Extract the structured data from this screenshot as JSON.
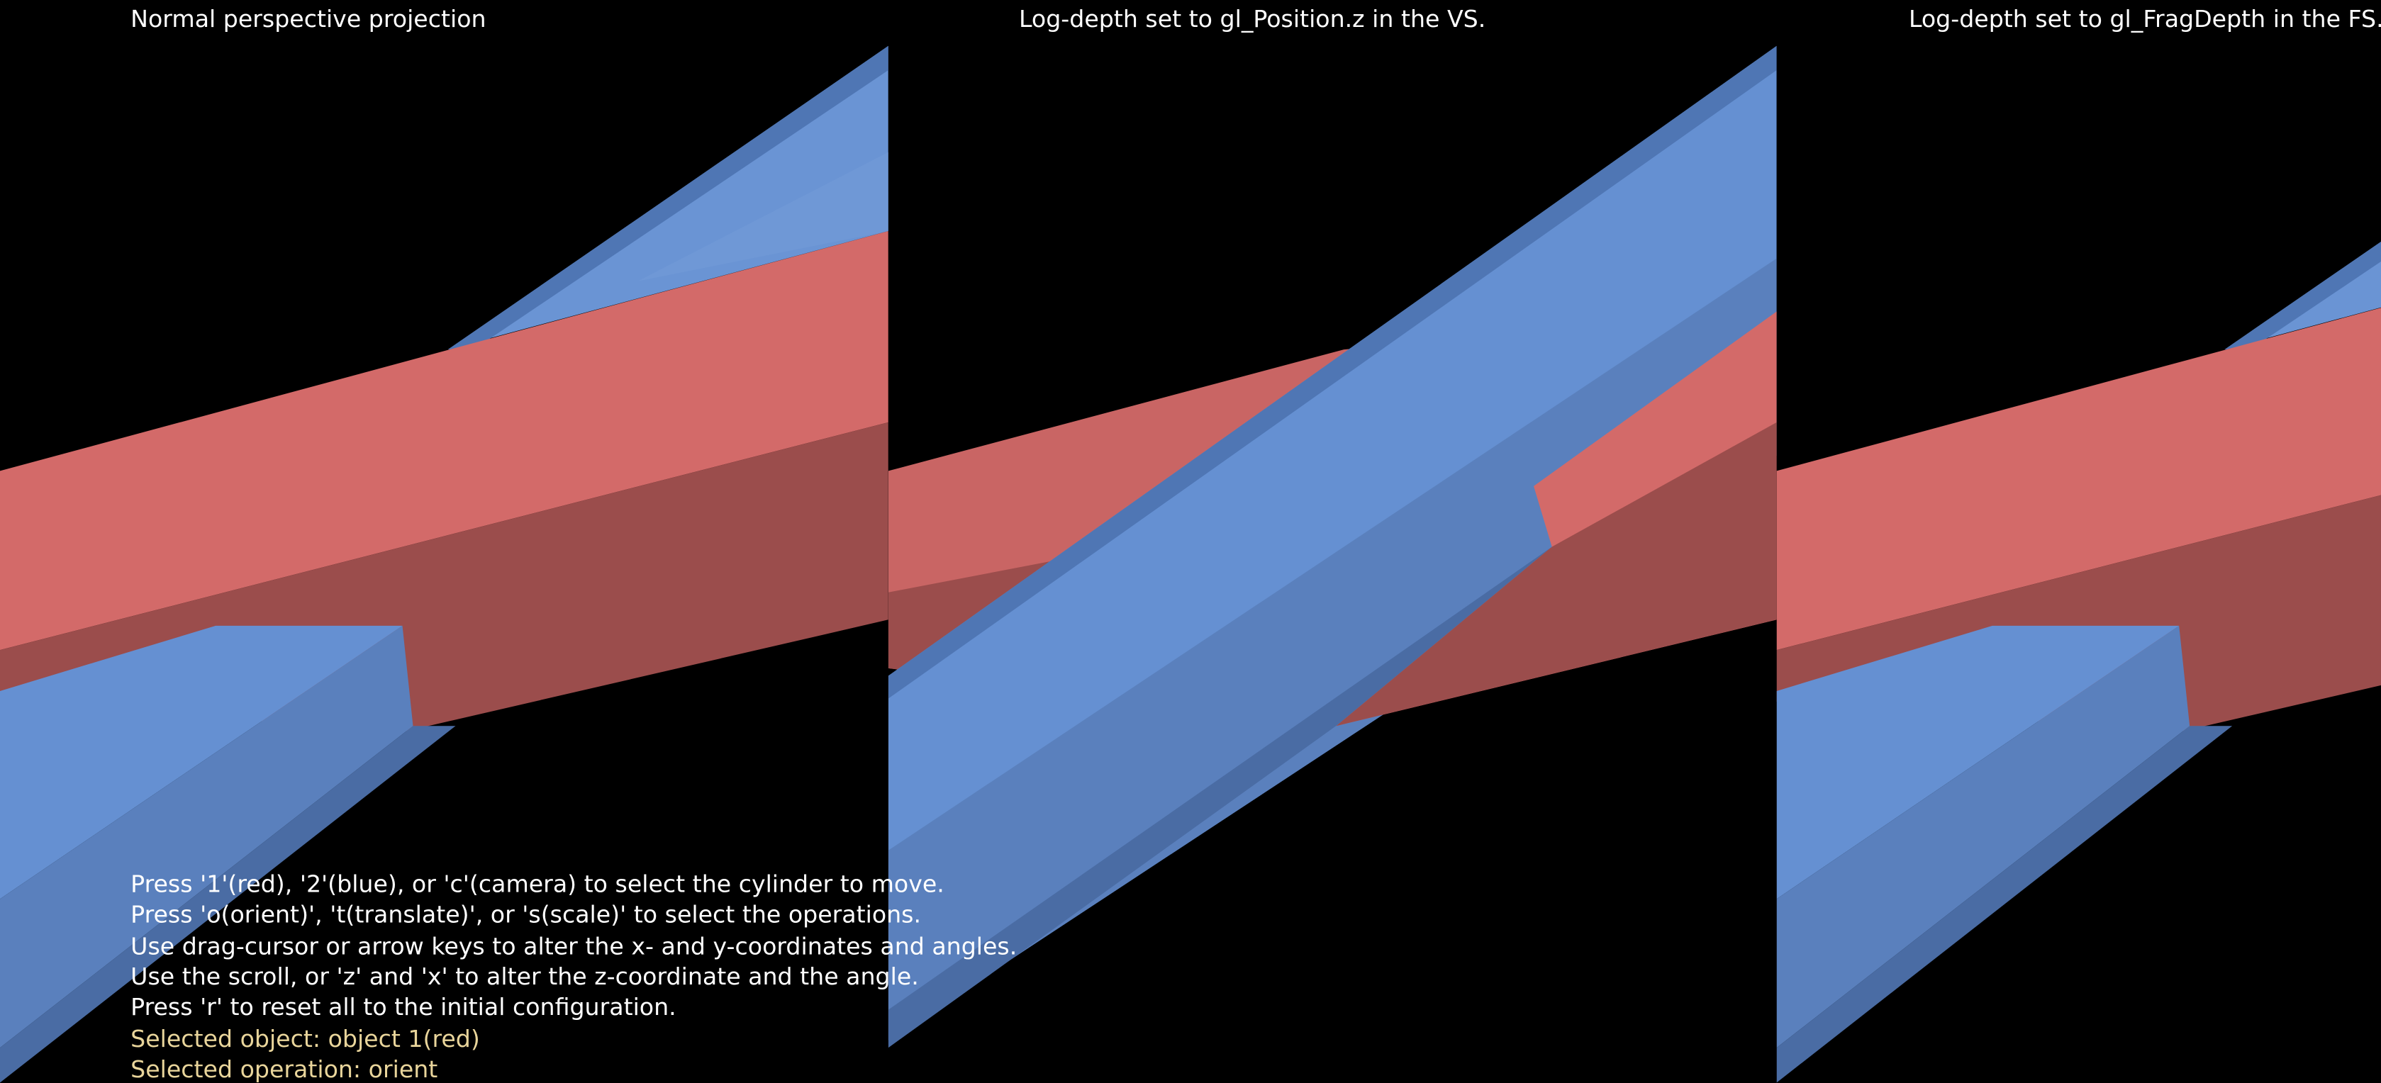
{
  "panels": [
    {
      "title": "Normal perspective projection"
    },
    {
      "title": "Log-depth set to gl_Position.z in the VS."
    },
    {
      "title": "Log-depth set to gl_FragDepth in the FS."
    }
  ],
  "instructions": [
    "Press '1'(red), '2'(blue), or 'c'(camera) to select the cylinder to move.",
    "Press 'o(orient)', 't(translate)', or 's(scale)' to select the operations.",
    "Use drag-cursor or arrow keys to alter the x- and y-coordinates and angles.",
    "Use the scroll, or 'z' and 'x' to alter the z-coordinate and the angle.",
    "Press 'r' to reset all to the initial configuration."
  ],
  "status": {
    "object": "Selected object: object 1(red)",
    "operation": "Selected operation: orient"
  }
}
